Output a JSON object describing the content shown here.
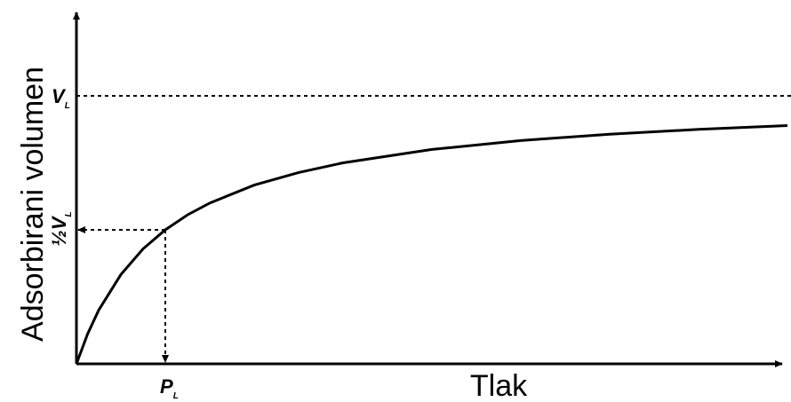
{
  "chart_data": {
    "type": "line",
    "title": "",
    "xlabel": "Tlak",
    "ylabel": "Adsorbirani volumen",
    "series": [
      {
        "x": [
          0,
          0.125,
          0.25,
          0.5,
          0.75,
          1.0,
          1.25,
          1.5,
          2.0,
          2.5,
          3.0,
          4.0,
          5.0,
          6.0,
          7.0,
          8.0
        ],
        "y": [
          0,
          0.111,
          0.2,
          0.333,
          0.429,
          0.5,
          0.556,
          0.6,
          0.667,
          0.714,
          0.75,
          0.8,
          0.833,
          0.857,
          0.875,
          0.889
        ]
      }
    ],
    "reference_lines": {
      "VL_level": 1.0,
      "half_VL_level": 0.5,
      "PL_value": 1.0
    },
    "labels": {
      "vl": "V",
      "vl_sub": "L",
      "half_vl_frac": "½",
      "half_vl": "V",
      "half_vl_sub": "L",
      "pl": "P",
      "pl_sub": "L"
    },
    "axis_ranges": {
      "x": [
        0,
        8
      ],
      "y": [
        0,
        1.05
      ]
    },
    "grid": false,
    "legend": "none",
    "colors": {
      "line": "#000000",
      "background": "#ffffff"
    }
  }
}
